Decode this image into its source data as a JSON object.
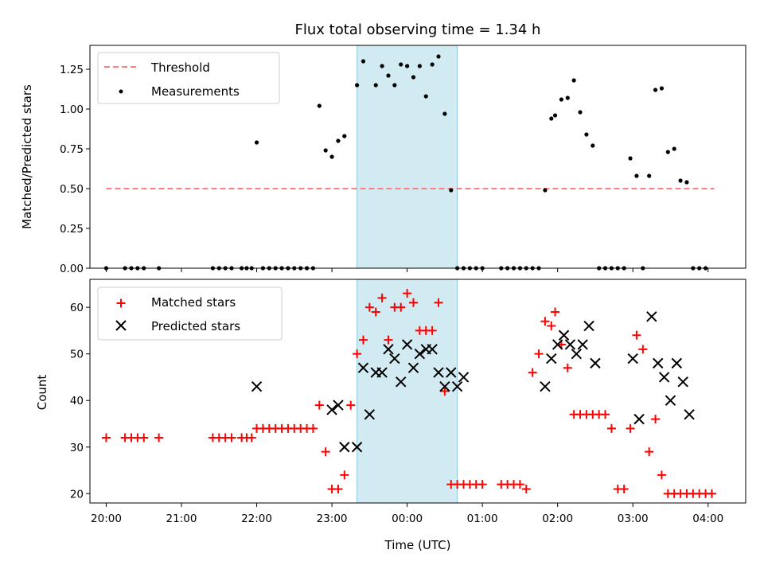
{
  "chart_data": [
    {
      "type": "scatter",
      "title": "Flux total observing time = 1.34 h",
      "xlabel": "",
      "ylabel": "Matched/Predicted stars",
      "ylim": [
        0,
        1.4
      ],
      "yticks": [
        0.0,
        0.25,
        0.5,
        0.75,
        1.0,
        1.25
      ],
      "ytick_labels": [
        "0.00",
        "0.25",
        "0.50",
        "0.75",
        "1.00",
        "1.25"
      ],
      "xlim": [
        "19:47",
        "04:30"
      ],
      "legend_position": "upper-left",
      "highlight_span": {
        "start": "23:20",
        "end": "00:40",
        "color": "#add8e6"
      },
      "series": [
        {
          "name": "Threshold",
          "style": "dashed-line",
          "color": "#ff7f7f",
          "x": [
            "20:00",
            "04:05"
          ],
          "y": [
            0.5,
            0.5
          ]
        },
        {
          "name": "Measurements",
          "style": "dots",
          "color": "#000000",
          "x": [
            "20:00",
            "20:15",
            "20:20",
            "20:25",
            "20:30",
            "20:42",
            "21:25",
            "21:30",
            "21:35",
            "21:40",
            "21:48",
            "21:52",
            "21:56",
            "22:00",
            "22:05",
            "22:10",
            "22:15",
            "22:20",
            "22:25",
            "22:30",
            "22:35",
            "22:40",
            "22:45",
            "22:50",
            "22:55",
            "23:00",
            "23:05",
            "23:10",
            "23:20",
            "23:25",
            "23:35",
            "23:40",
            "23:45",
            "23:50",
            "23:55",
            "00:00",
            "00:05",
            "00:10",
            "00:15",
            "00:20",
            "00:25",
            "00:30",
            "00:35",
            "00:40",
            "00:45",
            "00:50",
            "00:55",
            "01:00",
            "01:15",
            "01:20",
            "01:25",
            "01:30",
            "01:35",
            "01:40",
            "01:45",
            "01:50",
            "01:55",
            "01:58",
            "02:03",
            "02:08",
            "02:13",
            "02:18",
            "02:23",
            "02:28",
            "02:33",
            "02:38",
            "02:43",
            "02:48",
            "02:53",
            "02:58",
            "03:03",
            "03:08",
            "03:13",
            "03:18",
            "03:23",
            "03:28",
            "03:33",
            "03:38",
            "03:43",
            "03:48",
            "03:53",
            "03:58"
          ],
          "y": [
            0,
            0,
            0,
            0,
            0,
            0,
            0,
            0,
            0,
            0,
            0,
            0,
            0,
            0.79,
            0,
            0,
            0,
            0,
            0,
            0,
            0,
            0,
            0,
            1.02,
            0.74,
            0.7,
            0.8,
            0.83,
            1.15,
            1.3,
            1.15,
            1.27,
            1.21,
            1.15,
            1.28,
            1.27,
            1.2,
            1.27,
            1.08,
            1.28,
            1.33,
            0.97,
            0.49,
            0,
            0,
            0,
            0,
            0,
            0,
            0,
            0,
            0,
            0,
            0,
            0,
            0.49,
            0.94,
            0.96,
            1.06,
            1.07,
            1.18,
            0.98,
            0.84,
            0.77,
            0,
            0,
            0,
            0,
            0,
            0.69,
            0.58,
            0,
            0.58,
            1.12,
            1.13,
            0.73,
            0.75,
            0.55,
            0.54,
            0,
            0,
            0
          ]
        }
      ]
    },
    {
      "type": "scatter",
      "title": "",
      "xlabel": "Time (UTC)",
      "ylabel": "Count",
      "ylim": [
        18,
        66
      ],
      "yticks": [
        20,
        30,
        40,
        50,
        60
      ],
      "ytick_labels": [
        "20",
        "30",
        "40",
        "50",
        "60"
      ],
      "xlim": [
        "19:47",
        "04:30"
      ],
      "xticks": [
        "20:00",
        "21:00",
        "22:00",
        "23:00",
        "00:00",
        "01:00",
        "02:00",
        "03:00",
        "04:00"
      ],
      "legend_position": "upper-left",
      "highlight_span": {
        "start": "23:20",
        "end": "00:40",
        "color": "#add8e6"
      },
      "series": [
        {
          "name": "Matched stars",
          "marker": "plus",
          "color": "#ff0000",
          "x": [
            "20:00",
            "20:15",
            "20:20",
            "20:25",
            "20:30",
            "20:42",
            "21:25",
            "21:30",
            "21:35",
            "21:40",
            "21:48",
            "21:52",
            "21:56",
            "22:00",
            "22:05",
            "22:10",
            "22:15",
            "22:20",
            "22:25",
            "22:30",
            "22:35",
            "22:40",
            "22:45",
            "22:50",
            "22:55",
            "23:00",
            "23:05",
            "23:10",
            "23:15",
            "23:20",
            "23:25",
            "23:30",
            "23:35",
            "23:40",
            "23:45",
            "23:50",
            "23:55",
            "00:00",
            "00:05",
            "00:10",
            "00:15",
            "00:20",
            "00:25",
            "00:30",
            "00:35",
            "00:40",
            "00:45",
            "00:50",
            "00:55",
            "01:00",
            "01:15",
            "01:20",
            "01:25",
            "01:30",
            "01:35",
            "01:40",
            "01:45",
            "01:50",
            "01:55",
            "01:58",
            "02:03",
            "02:08",
            "02:13",
            "02:18",
            "02:23",
            "02:28",
            "02:33",
            "02:38",
            "02:43",
            "02:48",
            "02:53",
            "02:58",
            "03:03",
            "03:08",
            "03:13",
            "03:18",
            "03:23",
            "03:28",
            "03:33",
            "03:38",
            "03:43",
            "03:48",
            "03:53",
            "03:58",
            "04:03"
          ],
          "y": [
            32,
            32,
            32,
            32,
            32,
            32,
            32,
            32,
            32,
            32,
            32,
            32,
            32,
            34,
            34,
            34,
            34,
            34,
            34,
            34,
            34,
            34,
            34,
            39,
            29,
            21,
            21,
            24,
            39,
            50,
            53,
            60,
            59,
            62,
            53,
            60,
            60,
            63,
            61,
            55,
            55,
            55,
            61,
            42,
            22,
            22,
            22,
            22,
            22,
            22,
            22,
            22,
            22,
            22,
            21,
            46,
            50,
            57,
            56,
            59,
            52,
            47,
            37,
            37,
            37,
            37,
            37,
            37,
            34,
            21,
            21,
            34,
            54,
            51,
            29,
            36,
            24,
            20,
            20,
            20,
            20,
            20,
            20,
            20,
            20
          ]
        },
        {
          "name": "Predicted stars",
          "marker": "x",
          "color": "#000000",
          "x": [
            "22:00",
            "23:00",
            "23:05",
            "23:10",
            "23:20",
            "23:25",
            "23:30",
            "23:35",
            "23:40",
            "23:45",
            "23:50",
            "23:55",
            "00:00",
            "00:05",
            "00:10",
            "00:15",
            "00:20",
            "00:25",
            "00:30",
            "00:35",
            "00:40",
            "00:45",
            "01:50",
            "01:55",
            "02:00",
            "02:05",
            "02:10",
            "02:15",
            "02:20",
            "02:25",
            "02:30",
            "03:00",
            "03:05",
            "03:15",
            "03:20",
            "03:25",
            "03:30",
            "03:35",
            "03:40",
            "03:45"
          ],
          "y": [
            43,
            38,
            39,
            30,
            30,
            47,
            37,
            46,
            46,
            51,
            49,
            44,
            52,
            47,
            50,
            51,
            51,
            46,
            43,
            46,
            43,
            45,
            43,
            49,
            52,
            54,
            52,
            50,
            52,
            56,
            48,
            49,
            36,
            58,
            48,
            45,
            40,
            48,
            44,
            37
          ]
        }
      ]
    }
  ]
}
